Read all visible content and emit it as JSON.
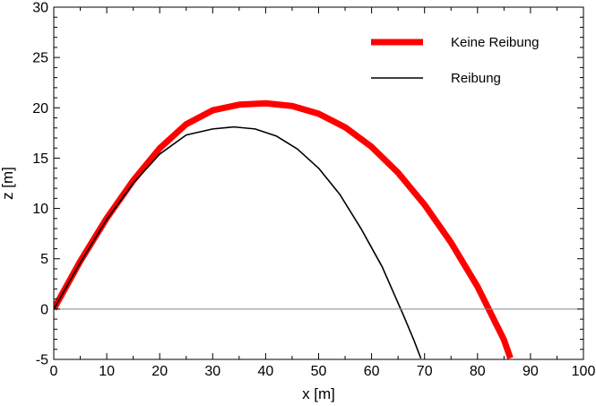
{
  "chart_data": {
    "type": "line",
    "title": "",
    "xlabel": "x [m]",
    "ylabel": "z [m]",
    "xlim": [
      0,
      100
    ],
    "ylim": [
      -5,
      30
    ],
    "xticks": [
      0,
      10,
      20,
      30,
      40,
      50,
      60,
      70,
      80,
      90,
      100
    ],
    "yticks": [
      -5,
      0,
      5,
      10,
      15,
      20,
      25,
      30
    ],
    "grid": false,
    "legend_position": "top-right",
    "baseline": 0,
    "series": [
      {
        "name": "Keine Reibung",
        "color": "#ff0000",
        "style": "thick",
        "x": [
          0,
          5,
          10,
          15,
          20,
          25,
          30,
          35,
          40,
          45,
          50,
          55,
          60,
          65,
          70,
          75,
          80,
          85,
          86.2
        ],
        "y": [
          0,
          4.76,
          9.03,
          12.78,
          15.98,
          18.37,
          19.75,
          20.31,
          20.45,
          20.18,
          19.41,
          18.07,
          16.12,
          13.55,
          10.37,
          6.61,
          2.23,
          -3.06,
          -4.88
        ]
      },
      {
        "name": "Reibung",
        "color": "#000000",
        "style": "thin",
        "x": [
          0,
          5,
          10,
          15,
          20,
          25,
          30,
          34,
          38,
          42,
          46,
          50,
          54,
          58,
          62,
          66,
          68,
          69.3
        ],
        "y": [
          0,
          4.6,
          8.9,
          12.5,
          15.4,
          17.3,
          17.9,
          18.1,
          17.9,
          17.2,
          15.9,
          14.0,
          11.4,
          8.0,
          4.2,
          -0.6,
          -3.1,
          -4.9
        ]
      }
    ]
  }
}
